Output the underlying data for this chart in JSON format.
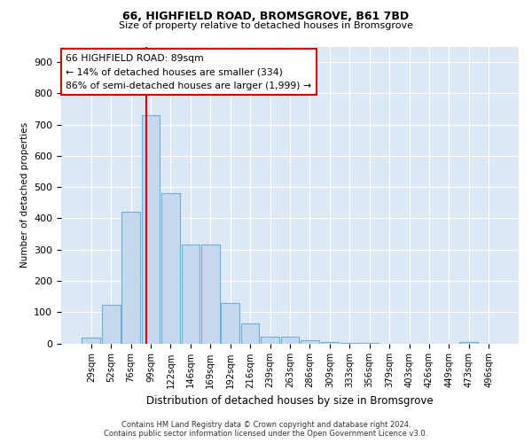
{
  "title1": "66, HIGHFIELD ROAD, BROMSGROVE, B61 7BD",
  "title2": "Size of property relative to detached houses in Bromsgrove",
  "xlabel": "Distribution of detached houses by size in Bromsgrove",
  "ylabel": "Number of detached properties",
  "bar_labels": [
    "29sqm",
    "52sqm",
    "76sqm",
    "99sqm",
    "122sqm",
    "146sqm",
    "169sqm",
    "192sqm",
    "216sqm",
    "239sqm",
    "263sqm",
    "286sqm",
    "309sqm",
    "333sqm",
    "356sqm",
    "379sqm",
    "403sqm",
    "426sqm",
    "449sqm",
    "473sqm",
    "496sqm"
  ],
  "bar_values": [
    18,
    122,
    420,
    730,
    480,
    317,
    317,
    130,
    65,
    22,
    20,
    10,
    5,
    2,
    2,
    0,
    0,
    0,
    0,
    5,
    0
  ],
  "bar_color": "#c5d9ee",
  "bar_edge_color": "#6baed6",
  "vline_x": 2.77,
  "vline_color": "#cc0000",
  "annotation_line1": "66 HIGHFIELD ROAD: 89sqm",
  "annotation_line2": "← 14% of detached houses are smaller (334)",
  "annotation_line3": "86% of semi-detached houses are larger (1,999) →",
  "annotation_box_color": "#ffffff",
  "annotation_box_edge": "#cc0000",
  "ylim": [
    0,
    950
  ],
  "yticks": [
    0,
    100,
    200,
    300,
    400,
    500,
    600,
    700,
    800,
    900
  ],
  "bg_color": "#ffffff",
  "plot_bg_color": "#dde8f5",
  "grid_color": "#ffffff",
  "footer1": "Contains HM Land Registry data © Crown copyright and database right 2024.",
  "footer2": "Contains public sector information licensed under the Open Government Licence v3.0."
}
